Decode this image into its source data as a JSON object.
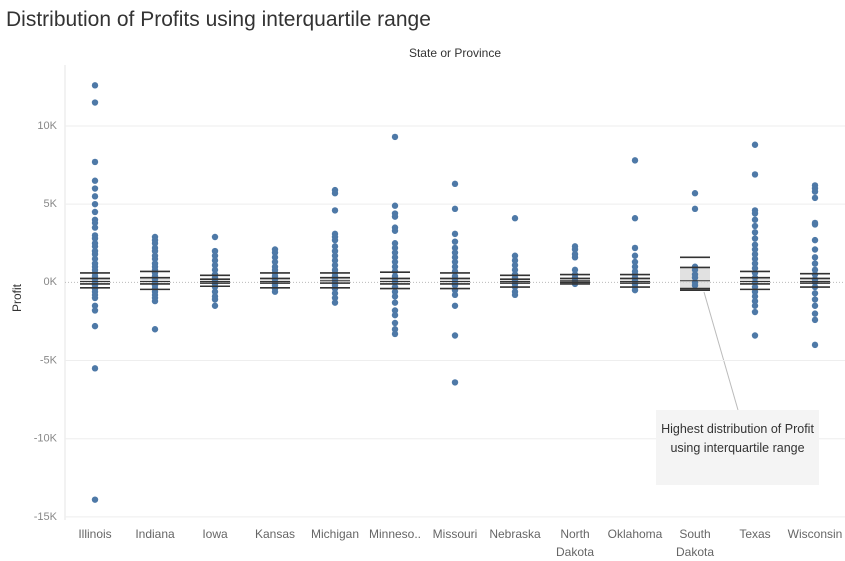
{
  "chart_data": {
    "type": "boxplot",
    "title": "Distribution of Profits using interquartile range",
    "column_header": "State or Province",
    "y_label": "Profit",
    "annotation": "Highest distribution of Profit using interquartile range",
    "color": "#4e79a7",
    "grid": true,
    "ylim": [
      -15200,
      13900
    ],
    "yticks": [
      {
        "value": 10000,
        "label": "10K"
      },
      {
        "value": 5000,
        "label": "5K"
      },
      {
        "value": 0,
        "label": "0K"
      },
      {
        "value": -5000,
        "label": "-5K"
      },
      {
        "value": -10000,
        "label": "-10K"
      },
      {
        "value": -15000,
        "label": "-15K"
      }
    ],
    "categories": [
      "Illinois",
      "Indiana",
      "Iowa",
      "Kansas",
      "Michigan",
      "Minneso..",
      "Missouri",
      "Nebraska",
      "North Dakota",
      "Oklahoma",
      "South Dakota",
      "Texas",
      "Wisconsin"
    ],
    "points": [
      [
        12600,
        11500,
        7700,
        6500,
        6000,
        5500,
        5000,
        4500,
        4000,
        3800,
        3500,
        3000,
        2800,
        2500,
        2300,
        2000,
        1800,
        1500,
        1200,
        1000,
        800,
        600,
        400,
        200,
        0,
        -200,
        -400,
        -600,
        -800,
        -1000,
        -1500,
        -1800,
        -2800,
        -5500,
        -13900
      ],
      [
        2900,
        2700,
        2500,
        2200,
        2000,
        1700,
        1500,
        1200,
        1000,
        800,
        600,
        400,
        200,
        0,
        -200,
        -400,
        -600,
        -800,
        -1000,
        -1200,
        -3000
      ],
      [
        2900,
        2000,
        1700,
        1400,
        1100,
        800,
        500,
        300,
        100,
        -100,
        -300,
        -600,
        -900,
        -1100,
        -1500
      ],
      [
        2100,
        1900,
        1600,
        1300,
        1000,
        800,
        600,
        400,
        200,
        0,
        -200,
        -400,
        -600
      ],
      [
        5900,
        5700,
        4600,
        3100,
        2900,
        2700,
        2300,
        2000,
        1700,
        1400,
        1100,
        800,
        600,
        400,
        200,
        0,
        -200,
        -400,
        -700,
        -1000,
        -1300
      ],
      [
        9300,
        4900,
        4400,
        4200,
        3500,
        3300,
        2500,
        2200,
        1900,
        1600,
        1300,
        1000,
        700,
        400,
        200,
        0,
        -300,
        -600,
        -900,
        -1300,
        -1800,
        -2100,
        -2600,
        -3000,
        -3300
      ],
      [
        6300,
        4700,
        3100,
        2600,
        2200,
        1900,
        1600,
        1300,
        1000,
        700,
        400,
        200,
        0,
        -200,
        -500,
        -800,
        -1500,
        -3400,
        -6400
      ],
      [
        4100,
        1700,
        1400,
        1100,
        800,
        500,
        300,
        100,
        -100,
        -300,
        -600,
        -800
      ],
      [
        2300,
        2100,
        1800,
        1600,
        800,
        500,
        300,
        100,
        -100
      ],
      [
        7800,
        4100,
        2200,
        1700,
        1300,
        1000,
        700,
        500,
        300,
        100,
        -100,
        -300,
        -500
      ],
      [
        5700,
        4700,
        1000,
        800,
        500,
        300,
        0,
        -200
      ],
      [
        8800,
        6900,
        4600,
        4400,
        4000,
        3600,
        3200,
        2800,
        2400,
        2100,
        1800,
        1500,
        1200,
        900,
        600,
        300,
        0,
        -300,
        -600,
        -900,
        -1200,
        -1500,
        -1900,
        -3400
      ],
      [
        6200,
        6000,
        5800,
        5400,
        3800,
        3700,
        2700,
        2100,
        1600,
        1200,
        800,
        500,
        200,
        0,
        -300,
        -700,
        -1100,
        -1500,
        -2000,
        -2400,
        -4000
      ]
    ],
    "boxes": [
      {
        "whisker_low": -350,
        "q1": -100,
        "median": 50,
        "q3": 250,
        "whisker_high": 600
      },
      {
        "whisker_low": -450,
        "q1": -100,
        "median": 50,
        "q3": 300,
        "whisker_high": 700
      },
      {
        "whisker_low": -250,
        "q1": -50,
        "median": 50,
        "q3": 200,
        "whisker_high": 450
      },
      {
        "whisker_low": -350,
        "q1": -50,
        "median": 50,
        "q3": 250,
        "whisker_high": 600
      },
      {
        "whisker_low": -350,
        "q1": -50,
        "median": 100,
        "q3": 300,
        "whisker_high": 600
      },
      {
        "whisker_low": -400,
        "q1": -100,
        "median": 50,
        "q3": 250,
        "whisker_high": 650
      },
      {
        "whisker_low": -400,
        "q1": -100,
        "median": 50,
        "q3": 250,
        "whisker_high": 600
      },
      {
        "whisker_low": -300,
        "q1": -50,
        "median": 50,
        "q3": 200,
        "whisker_high": 450
      },
      {
        "whisker_low": -100,
        "q1": 0,
        "median": 100,
        "q3": 250,
        "whisker_high": 500
      },
      {
        "whisker_low": -300,
        "q1": -50,
        "median": 50,
        "q3": 250,
        "whisker_high": 500
      },
      {
        "whisker_low": -500,
        "q1": -400,
        "median": 100,
        "q3": 950,
        "whisker_high": 1600
      },
      {
        "whisker_low": -450,
        "q1": -100,
        "median": 50,
        "q3": 300,
        "whisker_high": 700
      },
      {
        "whisker_low": -300,
        "q1": -50,
        "median": 50,
        "q3": 250,
        "whisker_high": 550
      }
    ]
  }
}
